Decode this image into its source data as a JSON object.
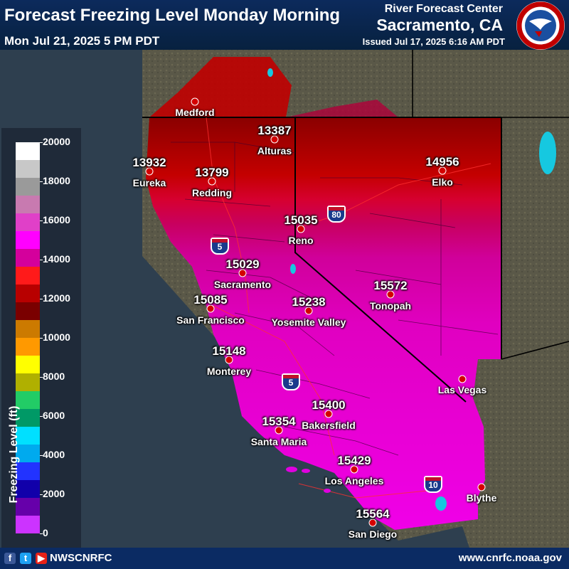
{
  "header": {
    "title": "Forecast Freezing Level Monday Morning",
    "valid_time": "Mon Jul 21, 2025 5 PM PDT",
    "rfc_label": "River Forecast Center",
    "office": "Sacramento, CA",
    "issued": "Issued Jul 17, 2025 6:16 AM PDT"
  },
  "legend": {
    "title": "Freezing Level (ft)",
    "ticks": [
      "20000",
      "18000",
      "16000",
      "14000",
      "12000",
      "10000",
      "8000",
      "6000",
      "4000",
      "2000",
      "0"
    ],
    "colors": [
      "#ffffff",
      "#c8c8c8",
      "#9a9a9a",
      "#c87ab0",
      "#e040c8",
      "#ff00ff",
      "#d4009c",
      "#ff1a1a",
      "#b80000",
      "#7a0000",
      "#cc7a00",
      "#ff9900",
      "#ffff00",
      "#b0b000",
      "#22cc66",
      "#009966",
      "#00e0ff",
      "#00aaee",
      "#2233ff",
      "#1100aa",
      "#6600aa",
      "#cc33ff"
    ]
  },
  "stations": [
    {
      "value": "13387",
      "name": "Alturas"
    },
    {
      "value": "13932",
      "name": "Eureka"
    },
    {
      "value": "13799",
      "name": "Redding"
    },
    {
      "value": "14956",
      "name": "Elko"
    },
    {
      "value": "15035",
      "name": "Reno"
    },
    {
      "value": "15029",
      "name": "Sacramento"
    },
    {
      "value": "15572",
      "name": "Tonopah"
    },
    {
      "value": "15085",
      "name": "San Francisco"
    },
    {
      "value": "15238",
      "name": "Yosemite Valley"
    },
    {
      "value": "15148",
      "name": "Monterey"
    },
    {
      "value": "15400",
      "name": "Bakersfield"
    },
    {
      "value": "15354",
      "name": "Santa Maria"
    },
    {
      "value": "15429",
      "name": "Los Angeles"
    },
    {
      "value": "15564",
      "name": "San Diego"
    }
  ],
  "cities": [
    "Medford",
    "Las Vegas",
    "Blythe"
  ],
  "highways": [
    "80",
    "5",
    "5",
    "10"
  ],
  "footer": {
    "icons": [
      "facebook-icon",
      "twitter-icon",
      "youtube-icon"
    ],
    "handle": "NWSCNRFC",
    "url": "www.cnrfc.noaa.gov"
  }
}
